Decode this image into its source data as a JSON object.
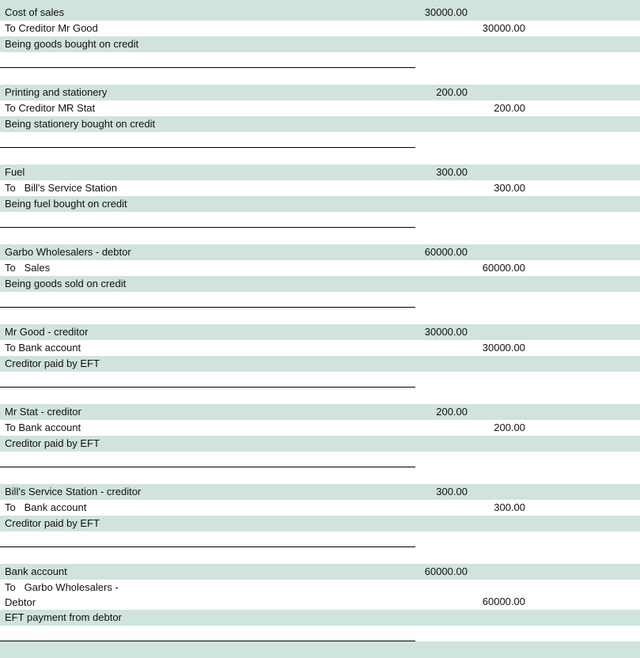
{
  "journal": [
    {
      "debit_account": "Cost of sales",
      "debit": "30000.00",
      "credit_account": "To Creditor Mr Good",
      "credit": "30000.00",
      "narration": "Being goods bought on credit"
    },
    {
      "debit_account": "Printing and stationery",
      "debit": "200.00",
      "credit_account": "To Creditor MR Stat",
      "credit": "200.00",
      "narration": "Being stationery bought on credit"
    },
    {
      "debit_account": "Fuel",
      "debit": "300.00",
      "credit_account": "To   Bill's Service Station",
      "credit": "300.00",
      "narration": "Being fuel bought on credit"
    },
    {
      "debit_account": "Garbo Wholesalers - debtor",
      "debit": "60000.00",
      "credit_account": "To   Sales",
      "credit": "60000.00",
      "narration": "Being goods sold on credit"
    },
    {
      "debit_account": "Mr Good - creditor",
      "debit": "30000.00",
      "credit_account": "To Bank account",
      "credit": "30000.00",
      "narration": "Creditor paid by EFT"
    },
    {
      "debit_account": "Mr Stat - creditor",
      "debit": "200.00",
      "credit_account": "To Bank account",
      "credit": "200.00",
      "narration": "Creditor paid by EFT"
    },
    {
      "debit_account": "Bill's Service Station - creditor",
      "debit": "300.00",
      "credit_account": "To   Bank account",
      "credit": "300.00",
      "narration": "Creditor paid by EFT"
    },
    {
      "debit_account": "Bank account",
      "debit": "60000.00",
      "credit_account": "To   Garbo Wholesalers -\nDebtor",
      "credit": "60000.00",
      "narration": "EFT payment from debtor"
    }
  ],
  "colors": {
    "band": "#d0e3dc"
  }
}
